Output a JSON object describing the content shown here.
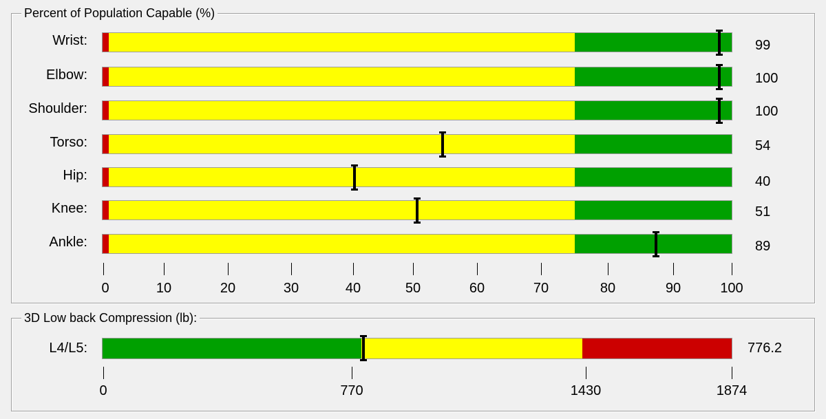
{
  "population_group": {
    "title": "Percent of Population Capable (%)",
    "rows": [
      {
        "label": "Wrist:",
        "value": "99",
        "marker": 98
      },
      {
        "label": "Elbow:",
        "value": "100",
        "marker": 98
      },
      {
        "label": "Shoulder:",
        "value": "100",
        "marker": 98
      },
      {
        "label": "Torso:",
        "value": "54",
        "marker": 54
      },
      {
        "label": "Hip:",
        "value": "40",
        "marker": 40
      },
      {
        "label": "Knee:",
        "value": "51",
        "marker": 50
      },
      {
        "label": "Ankle:",
        "value": "89",
        "marker": 88
      }
    ],
    "scale": {
      "min": 0,
      "max": 100,
      "red_end": 1,
      "yellow_end": 75
    },
    "ticks": [
      "0",
      "10",
      "20",
      "30",
      "40",
      "50",
      "60",
      "70",
      "80",
      "90",
      "100"
    ]
  },
  "compression_group": {
    "title": "3D Low back Compression (lb):",
    "row": {
      "label": "L4/L5:",
      "value": "776.2",
      "marker": 776.2
    },
    "scale": {
      "min": 0,
      "max": 1874,
      "green_end": 770,
      "yellow_end": 1430
    },
    "ticks": [
      "0",
      "770",
      "1430",
      "1874"
    ]
  },
  "colors": {
    "red": "#cc0000",
    "yellow": "#ffff00",
    "green": "#00a000"
  }
}
